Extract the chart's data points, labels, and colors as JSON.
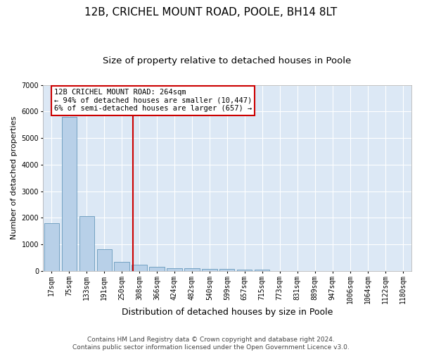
{
  "title1": "12B, CRICHEL MOUNT ROAD, POOLE, BH14 8LT",
  "title2": "Size of property relative to detached houses in Poole",
  "xlabel": "Distribution of detached houses by size in Poole",
  "ylabel": "Number of detached properties",
  "categories": [
    "17sqm",
    "75sqm",
    "133sqm",
    "191sqm",
    "250sqm",
    "308sqm",
    "366sqm",
    "424sqm",
    "482sqm",
    "540sqm",
    "599sqm",
    "657sqm",
    "715sqm",
    "773sqm",
    "831sqm",
    "889sqm",
    "947sqm",
    "1006sqm",
    "1064sqm",
    "1122sqm",
    "1180sqm"
  ],
  "values": [
    1800,
    5800,
    2060,
    820,
    340,
    230,
    150,
    110,
    90,
    70,
    60,
    55,
    50,
    0,
    0,
    0,
    0,
    0,
    0,
    0,
    0
  ],
  "bar_color": "#b8d0e8",
  "bar_edge_color": "#6699bb",
  "vline_x": 4.62,
  "vline_color": "#cc0000",
  "annotation_text": "12B CRICHEL MOUNT ROAD: 264sqm\n← 94% of detached houses are smaller (10,447)\n6% of semi-detached houses are larger (657) →",
  "annotation_box_facecolor": "#ffffff",
  "annotation_box_edgecolor": "#cc0000",
  "ylim": [
    0,
    7000
  ],
  "yticks": [
    0,
    1000,
    2000,
    3000,
    4000,
    5000,
    6000,
    7000
  ],
  "plot_bg_color": "#dce8f5",
  "footer1": "Contains HM Land Registry data © Crown copyright and database right 2024.",
  "footer2": "Contains public sector information licensed under the Open Government Licence v3.0.",
  "title1_fontsize": 11,
  "title2_fontsize": 9.5,
  "xlabel_fontsize": 9,
  "ylabel_fontsize": 8,
  "tick_fontsize": 7,
  "annotation_fontsize": 7.5,
  "footer_fontsize": 6.5
}
